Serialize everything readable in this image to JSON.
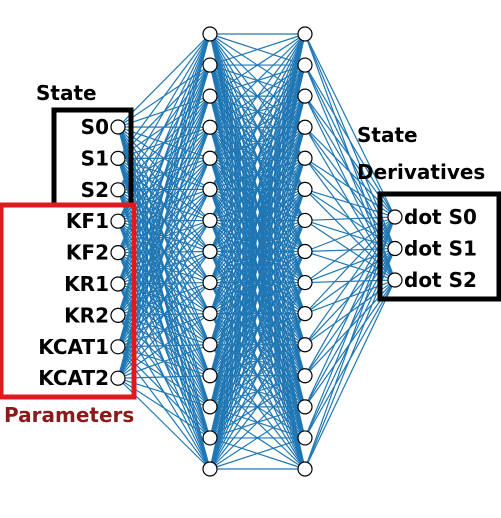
{
  "state_label": "State",
  "params_label": "Parameters",
  "derivatives_label_line1": "State",
  "derivatives_label_line2": "Derivatives",
  "inputs": [
    "S0",
    "S1",
    "S2",
    "KF1",
    "KF2",
    "KR1",
    "KR2",
    "KCAT1",
    "KCAT2"
  ],
  "outputs": [
    "dot S0",
    "dot S1",
    "dot S2"
  ],
  "hidden_layer_1_nodes": 15,
  "hidden_layer_2_nodes": 15,
  "colors": {
    "edge": "#1f77b4",
    "state_box": "#000000",
    "params_box": "#e0191e",
    "params_text": "#8b1a1a",
    "text": "#000000",
    "node_fill": "#ffffff",
    "node_stroke": "#000000"
  }
}
